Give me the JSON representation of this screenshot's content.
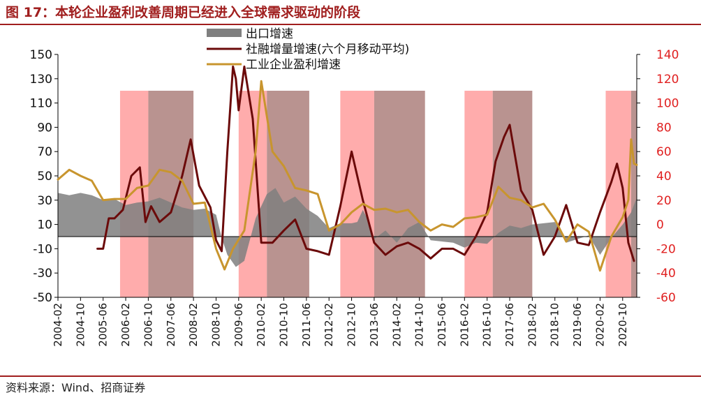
{
  "header": {
    "title": "图 17：本轮企业盈利改善周期已经进入全球需求驱动的阶段"
  },
  "footer": {
    "source": "资料来源：Wind、招商证券"
  },
  "colors": {
    "brand": "#a01e1e",
    "export_area": "#7f7f7f",
    "social_financing": "#6b0a0a",
    "industrial_profit": "#c8952e",
    "band_pink": "#ff9d9d",
    "band_brown": "#a87874",
    "left_axis_text": "#111111",
    "right_axis_text": "#e02020"
  },
  "chart_data": {
    "type": "line",
    "time_range": [
      "2004-02",
      "2021-03"
    ],
    "x_ticks": [
      "2004-02",
      "2004-10",
      "2005-06",
      "2006-02",
      "2006-10",
      "2007-06",
      "2008-02",
      "2008-10",
      "2009-06",
      "2010-02",
      "2010-10",
      "2011-06",
      "2012-02",
      "2012-10",
      "2013-06",
      "2014-02",
      "2014-10",
      "2015-06",
      "2016-02",
      "2016-10",
      "2017-06",
      "2018-02",
      "2018-10",
      "2019-06",
      "2020-02",
      "2020-10"
    ],
    "y_left": {
      "ticks": [
        150,
        130,
        110,
        90,
        70,
        50,
        30,
        10,
        -10,
        -30,
        -50
      ],
      "range": [
        -50,
        150
      ]
    },
    "y_right": {
      "ticks": [
        140,
        120,
        100,
        80,
        60,
        40,
        20,
        0,
        -20,
        -40,
        -60
      ],
      "range": [
        -60,
        140
      ]
    },
    "legend": [
      {
        "name": "出口增速",
        "kind": "area"
      },
      {
        "name": "社融增量增速(六个月移动平均)",
        "kind": "line"
      },
      {
        "name": "工业企业盈利增速",
        "kind": "line"
      }
    ],
    "highlight_periods": [
      {
        "start": "2005-12",
        "end": "2006-10",
        "kind": "pink"
      },
      {
        "start": "2006-10",
        "end": "2008-02",
        "kind": "brown"
      },
      {
        "start": "2009-06",
        "end": "2010-04",
        "kind": "pink"
      },
      {
        "start": "2010-04",
        "end": "2011-07",
        "kind": "brown"
      },
      {
        "start": "2012-06",
        "end": "2013-06",
        "kind": "pink"
      },
      {
        "start": "2013-06",
        "end": "2014-12",
        "kind": "brown"
      },
      {
        "start": "2016-02",
        "end": "2016-12",
        "kind": "pink"
      },
      {
        "start": "2016-12",
        "end": "2018-02",
        "kind": "brown"
      },
      {
        "start": "2020-04",
        "end": "2021-01",
        "kind": "pink"
      },
      {
        "start": "2021-01",
        "end": "2021-03",
        "kind": "brown"
      }
    ],
    "series": [
      {
        "name": "出口增速",
        "axis": "left",
        "points": [
          [
            "2004-02",
            36
          ],
          [
            "2004-06",
            34
          ],
          [
            "2004-10",
            36
          ],
          [
            "2005-02",
            34
          ],
          [
            "2005-06",
            30
          ],
          [
            "2005-10",
            31
          ],
          [
            "2006-02",
            26
          ],
          [
            "2006-06",
            28
          ],
          [
            "2006-10",
            29
          ],
          [
            "2007-02",
            32
          ],
          [
            "2007-06",
            28
          ],
          [
            "2007-10",
            24
          ],
          [
            "2008-02",
            22
          ],
          [
            "2008-06",
            23
          ],
          [
            "2008-10",
            18
          ],
          [
            "2008-12",
            -1
          ],
          [
            "2009-02",
            -15
          ],
          [
            "2009-05",
            -25
          ],
          [
            "2009-08",
            -20
          ],
          [
            "2009-12",
            15
          ],
          [
            "2010-04",
            35
          ],
          [
            "2010-07",
            40
          ],
          [
            "2010-10",
            28
          ],
          [
            "2011-02",
            33
          ],
          [
            "2011-06",
            23
          ],
          [
            "2011-10",
            17
          ],
          [
            "2012-02",
            7
          ],
          [
            "2012-06",
            11
          ],
          [
            "2012-10",
            11
          ],
          [
            "2012-12",
            12
          ],
          [
            "2013-02",
            22
          ],
          [
            "2013-04",
            13
          ],
          [
            "2013-06",
            -2
          ],
          [
            "2013-10",
            5
          ],
          [
            "2014-02",
            -5
          ],
          [
            "2014-06",
            7
          ],
          [
            "2014-10",
            12
          ],
          [
            "2015-02",
            -3
          ],
          [
            "2015-06",
            -4
          ],
          [
            "2015-10",
            -5
          ],
          [
            "2016-02",
            -9
          ],
          [
            "2016-06",
            -5
          ],
          [
            "2016-10",
            -6
          ],
          [
            "2017-02",
            3
          ],
          [
            "2017-06",
            9
          ],
          [
            "2017-10",
            7
          ],
          [
            "2018-02",
            10
          ],
          [
            "2018-06",
            11
          ],
          [
            "2018-10",
            12
          ],
          [
            "2019-02",
            -5
          ],
          [
            "2019-06",
            -2
          ],
          [
            "2019-10",
            1
          ],
          [
            "2020-02",
            -15
          ],
          [
            "2020-06",
            -1
          ],
          [
            "2020-10",
            10
          ],
          [
            "2021-01",
            20
          ],
          [
            "2021-03",
            32
          ]
        ]
      },
      {
        "name": "社融增量增速(六个月移动平均)",
        "axis": "left",
        "points": [
          [
            "2005-04",
            -10
          ],
          [
            "2005-06",
            -10
          ],
          [
            "2005-08",
            15
          ],
          [
            "2005-10",
            15
          ],
          [
            "2006-01",
            22
          ],
          [
            "2006-04",
            50
          ],
          [
            "2006-07",
            57
          ],
          [
            "2006-09",
            12
          ],
          [
            "2006-11",
            25
          ],
          [
            "2007-02",
            12
          ],
          [
            "2007-06",
            20
          ],
          [
            "2007-10",
            50
          ],
          [
            "2008-01",
            80
          ],
          [
            "2008-04",
            42
          ],
          [
            "2008-08",
            24
          ],
          [
            "2008-10",
            -3
          ],
          [
            "2008-12",
            -12
          ],
          [
            "2009-02",
            70
          ],
          [
            "2009-04",
            140
          ],
          [
            "2009-05",
            130
          ],
          [
            "2009-06",
            104
          ],
          [
            "2009-08",
            140
          ],
          [
            "2009-11",
            97
          ],
          [
            "2010-02",
            -5
          ],
          [
            "2010-06",
            -5
          ],
          [
            "2010-10",
            5
          ],
          [
            "2011-02",
            14
          ],
          [
            "2011-06",
            -10
          ],
          [
            "2011-10",
            -12
          ],
          [
            "2012-02",
            -15
          ],
          [
            "2012-06",
            25
          ],
          [
            "2012-10",
            70
          ],
          [
            "2013-02",
            30
          ],
          [
            "2013-06",
            -5
          ],
          [
            "2013-10",
            -15
          ],
          [
            "2014-02",
            -8
          ],
          [
            "2014-06",
            -5
          ],
          [
            "2014-10",
            -10
          ],
          [
            "2015-02",
            -18
          ],
          [
            "2015-06",
            -10
          ],
          [
            "2015-10",
            -10
          ],
          [
            "2016-02",
            -15
          ],
          [
            "2016-06",
            0
          ],
          [
            "2016-10",
            20
          ],
          [
            "2017-01",
            62
          ],
          [
            "2017-04",
            82
          ],
          [
            "2017-06",
            92
          ],
          [
            "2017-10",
            38
          ],
          [
            "2018-02",
            22
          ],
          [
            "2018-06",
            -15
          ],
          [
            "2018-10",
            0
          ],
          [
            "2019-02",
            26
          ],
          [
            "2019-06",
            -5
          ],
          [
            "2019-10",
            -7
          ],
          [
            "2020-02",
            20
          ],
          [
            "2020-06",
            45
          ],
          [
            "2020-08",
            60
          ],
          [
            "2020-10",
            40
          ],
          [
            "2020-12",
            -5
          ],
          [
            "2021-02",
            -20
          ]
        ]
      },
      {
        "name": "工业企业盈利增速",
        "axis": "right",
        "points": [
          [
            "2004-02",
            37
          ],
          [
            "2004-06",
            45
          ],
          [
            "2004-10",
            40
          ],
          [
            "2005-02",
            36
          ],
          [
            "2005-06",
            20
          ],
          [
            "2005-10",
            21
          ],
          [
            "2006-02",
            21
          ],
          [
            "2006-06",
            30
          ],
          [
            "2006-10",
            32
          ],
          [
            "2007-02",
            45
          ],
          [
            "2007-06",
            43
          ],
          [
            "2007-10",
            36
          ],
          [
            "2008-02",
            17
          ],
          [
            "2008-06",
            18
          ],
          [
            "2008-10",
            -20
          ],
          [
            "2009-01",
            -37
          ],
          [
            "2009-04",
            -20
          ],
          [
            "2009-08",
            -5
          ],
          [
            "2009-12",
            60
          ],
          [
            "2010-02",
            118
          ],
          [
            "2010-06",
            60
          ],
          [
            "2010-10",
            48
          ],
          [
            "2011-02",
            30
          ],
          [
            "2011-06",
            28
          ],
          [
            "2011-10",
            25
          ],
          [
            "2012-02",
            -5
          ],
          [
            "2012-06",
            0
          ],
          [
            "2012-10",
            10
          ],
          [
            "2013-02",
            17
          ],
          [
            "2013-06",
            12
          ],
          [
            "2013-10",
            13
          ],
          [
            "2014-02",
            10
          ],
          [
            "2014-06",
            12
          ],
          [
            "2014-10",
            2
          ],
          [
            "2015-02",
            -5
          ],
          [
            "2015-06",
            0
          ],
          [
            "2015-10",
            -2
          ],
          [
            "2016-02",
            5
          ],
          [
            "2016-06",
            6
          ],
          [
            "2016-10",
            8
          ],
          [
            "2017-02",
            31
          ],
          [
            "2017-06",
            22
          ],
          [
            "2017-10",
            20
          ],
          [
            "2018-02",
            14
          ],
          [
            "2018-06",
            17
          ],
          [
            "2018-10",
            4
          ],
          [
            "2019-02",
            -14
          ],
          [
            "2019-06",
            0
          ],
          [
            "2019-10",
            -6
          ],
          [
            "2020-02",
            -38
          ],
          [
            "2020-06",
            -10
          ],
          [
            "2020-10",
            6
          ],
          [
            "2020-12",
            20
          ],
          [
            "2021-01",
            70
          ],
          [
            "2021-02",
            50
          ],
          [
            "2021-03",
            49
          ]
        ]
      }
    ]
  }
}
